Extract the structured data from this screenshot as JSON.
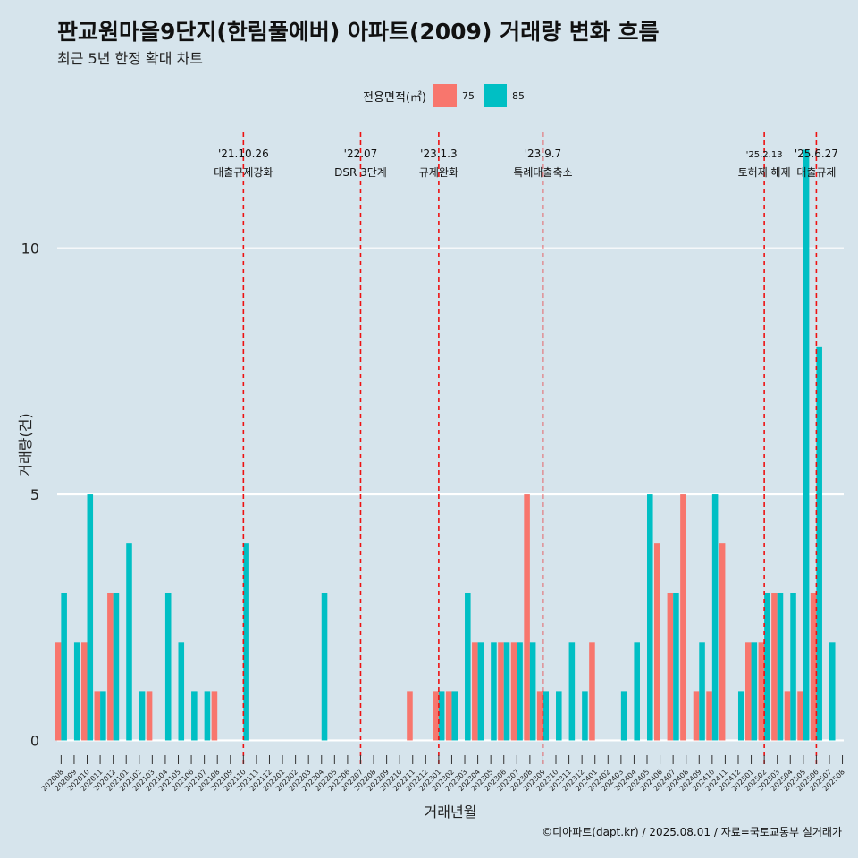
{
  "title": "판교원마을9단지(한림풀에버) 아파트(2009) 거래량 변화 흐름",
  "subtitle": "최근 5년 한정 확대 차트",
  "caption": "©디아파트(dapt.kr) / 2025.08.01 / 자료=국토교통부 실거래가",
  "legend": {
    "title": "전용면적(㎡)",
    "items": [
      {
        "label": "75",
        "color": "#f8766d"
      },
      {
        "label": "85",
        "color": "#00bfc4"
      }
    ]
  },
  "chart_data": {
    "type": "bar",
    "xlabel": "거래년월",
    "ylabel": "거래량(건)",
    "ylim": [
      -0.5,
      12.5
    ],
    "yticks": [
      0,
      5,
      10
    ],
    "grid": true,
    "legend_position": "top",
    "categories": [
      "202008",
      "202009",
      "202010",
      "202011",
      "202012",
      "202101",
      "202102",
      "202103",
      "202104",
      "202105",
      "202106",
      "202107",
      "202108",
      "202109",
      "202110",
      "202111",
      "202112",
      "202201",
      "202202",
      "202203",
      "202204",
      "202205",
      "202206",
      "202207",
      "202208",
      "202209",
      "202210",
      "202211",
      "202212",
      "202301",
      "202302",
      "202303",
      "202304",
      "202305",
      "202306",
      "202307",
      "202308",
      "202309",
      "202310",
      "202311",
      "202312",
      "202401",
      "202402",
      "202403",
      "202404",
      "202405",
      "202406",
      "202407",
      "202408",
      "202409",
      "202410",
      "202411",
      "202412",
      "202501",
      "202502",
      "202503",
      "202504",
      "202505",
      "202506",
      "202507",
      "202508"
    ],
    "series": [
      {
        "name": "75",
        "color": "#f8766d",
        "values": [
          2,
          0,
          2,
          1,
          3,
          0,
          0,
          1,
          0,
          0,
          0,
          0,
          1,
          0,
          0,
          0,
          0,
          0,
          0,
          0,
          0,
          0,
          0,
          0,
          0,
          0,
          0,
          1,
          0,
          1,
          1,
          0,
          2,
          0,
          2,
          2,
          5,
          1,
          0,
          0,
          0,
          2,
          0,
          0,
          0,
          0,
          4,
          3,
          5,
          1,
          1,
          4,
          0,
          2,
          2,
          3,
          1,
          1,
          3,
          0,
          0
        ]
      },
      {
        "name": "85",
        "color": "#00bfc4",
        "values": [
          3,
          2,
          5,
          1,
          3,
          4,
          1,
          0,
          3,
          2,
          1,
          1,
          0,
          0,
          4,
          0,
          0,
          0,
          0,
          0,
          3,
          0,
          0,
          0,
          0,
          0,
          0,
          0,
          0,
          1,
          1,
          3,
          2,
          2,
          2,
          2,
          2,
          1,
          1,
          2,
          1,
          0,
          0,
          1,
          2,
          5,
          0,
          3,
          0,
          2,
          5,
          0,
          1,
          2,
          3,
          3,
          3,
          12,
          8,
          2,
          0
        ]
      }
    ],
    "events": [
      {
        "index": 14,
        "date": "'21.10.26",
        "label": "대출규제강화"
      },
      {
        "index": 23,
        "date": "'22.07",
        "label": "DSR 3단계"
      },
      {
        "index": 29,
        "date": "'23.1.3",
        "label": "규제완화"
      },
      {
        "index": 37,
        "date": "'23.9.7",
        "label": "특례대출축소"
      },
      {
        "index": 54,
        "date": "'25.2.13",
        "label": "토허제 해제"
      },
      {
        "index": 58,
        "date": "'25.6.27",
        "label": "대출규제"
      }
    ]
  }
}
